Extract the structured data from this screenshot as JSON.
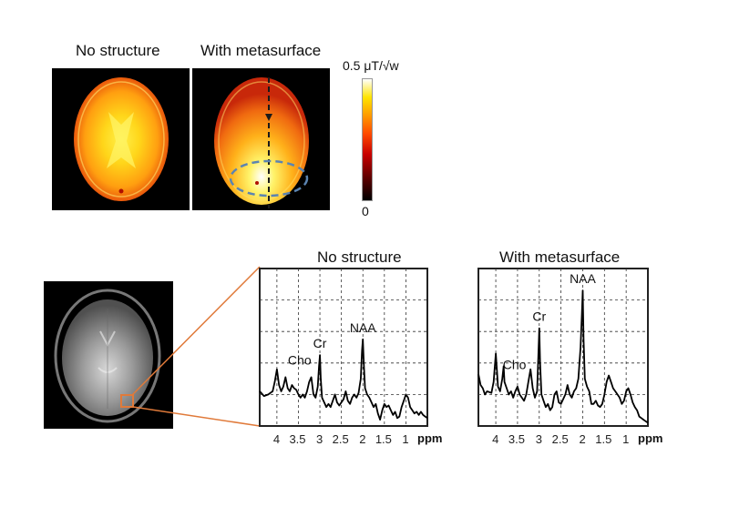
{
  "top_panel": {
    "map_titles": [
      "No structure",
      "With metasurface"
    ],
    "colorbar": {
      "max_label": "0.5 μT/√w",
      "min_label": "0",
      "colormap": "hot",
      "stops": [
        "#000000",
        "#5a0000",
        "#c80000",
        "#ff4a00",
        "#ff9a00",
        "#ffe400",
        "#ffffff"
      ]
    },
    "annotations": {
      "dashed_line_color": "#1a1a1a",
      "ellipse_color": "#5b84b1"
    }
  },
  "bottom_panel": {
    "roi_box_color": "#e07a3a",
    "connector_color": "#e07a3a",
    "chart_data": [
      {
        "type": "line",
        "title": "No structure",
        "xlabel": "ppm",
        "x_ticks": [
          "4",
          "3.5",
          "3",
          "2.5",
          "2",
          "1.5",
          "1"
        ],
        "x_range": [
          4.4,
          0.5
        ],
        "y_range": [
          0,
          1
        ],
        "grid": true,
        "peak_labels": [
          {
            "text": "Cho",
            "ppm": 3.2
          },
          {
            "text": "Cr",
            "ppm": 3.0
          },
          {
            "text": "NAA",
            "ppm": 2.0
          }
        ],
        "series": [
          {
            "name": "spectrum",
            "x": [
              4.4,
              4.3,
              4.2,
              4.1,
              4.05,
              4.0,
              3.95,
              3.9,
              3.85,
              3.8,
              3.75,
              3.7,
              3.65,
              3.6,
              3.55,
              3.5,
              3.45,
              3.4,
              3.35,
              3.3,
              3.25,
              3.2,
              3.15,
              3.1,
              3.05,
              3.02,
              3.0,
              2.98,
              2.95,
              2.9,
              2.85,
              2.8,
              2.75,
              2.7,
              2.65,
              2.6,
              2.55,
              2.5,
              2.45,
              2.4,
              2.35,
              2.3,
              2.25,
              2.2,
              2.15,
              2.1,
              2.05,
              2.02,
              2.0,
              1.98,
              1.95,
              1.9,
              1.85,
              1.8,
              1.75,
              1.7,
              1.65,
              1.6,
              1.55,
              1.5,
              1.45,
              1.4,
              1.35,
              1.3,
              1.25,
              1.2,
              1.15,
              1.1,
              1.05,
              1.0,
              0.95,
              0.9,
              0.85,
              0.8,
              0.75,
              0.7,
              0.65,
              0.6,
              0.55,
              0.5
            ],
            "y": [
              0.22,
              0.19,
              0.2,
              0.22,
              0.28,
              0.36,
              0.26,
              0.22,
              0.25,
              0.31,
              0.24,
              0.22,
              0.26,
              0.24,
              0.23,
              0.2,
              0.18,
              0.2,
              0.18,
              0.22,
              0.28,
              0.31,
              0.2,
              0.18,
              0.25,
              0.38,
              0.45,
              0.3,
              0.18,
              0.15,
              0.12,
              0.14,
              0.12,
              0.16,
              0.2,
              0.15,
              0.13,
              0.15,
              0.17,
              0.22,
              0.16,
              0.14,
              0.18,
              0.2,
              0.18,
              0.21,
              0.3,
              0.48,
              0.55,
              0.4,
              0.24,
              0.2,
              0.18,
              0.15,
              0.12,
              0.14,
              0.08,
              0.04,
              0.1,
              0.14,
              0.12,
              0.13,
              0.1,
              0.07,
              0.09,
              0.05,
              0.06,
              0.12,
              0.16,
              0.2,
              0.18,
              0.12,
              0.1,
              0.08,
              0.09,
              0.07,
              0.09,
              0.07,
              0.06,
              0.05
            ]
          }
        ]
      },
      {
        "type": "line",
        "title": "With metasurface",
        "xlabel": "ppm",
        "x_ticks": [
          "4",
          "3.5",
          "3",
          "2.5",
          "2",
          "1.5",
          "1"
        ],
        "x_range": [
          4.4,
          0.5
        ],
        "y_range": [
          0,
          1
        ],
        "grid": true,
        "peak_labels": [
          {
            "text": "Cho",
            "ppm": 3.3
          },
          {
            "text": "Cr",
            "ppm": 3.0
          },
          {
            "text": "NAA",
            "ppm": 2.0
          }
        ],
        "series": [
          {
            "name": "spectrum",
            "x": [
              4.4,
              4.35,
              4.3,
              4.25,
              4.2,
              4.1,
              4.05,
              4.0,
              3.95,
              3.9,
              3.85,
              3.82,
              3.8,
              3.75,
              3.7,
              3.65,
              3.6,
              3.55,
              3.5,
              3.45,
              3.4,
              3.35,
              3.3,
              3.25,
              3.2,
              3.15,
              3.1,
              3.05,
              3.02,
              3.0,
              2.98,
              2.95,
              2.9,
              2.85,
              2.8,
              2.75,
              2.7,
              2.65,
              2.6,
              2.55,
              2.5,
              2.45,
              2.4,
              2.35,
              2.3,
              2.25,
              2.2,
              2.15,
              2.1,
              2.05,
              2.02,
              2.0,
              1.98,
              1.95,
              1.9,
              1.85,
              1.8,
              1.75,
              1.7,
              1.65,
              1.6,
              1.55,
              1.5,
              1.45,
              1.4,
              1.35,
              1.3,
              1.25,
              1.2,
              1.15,
              1.1,
              1.05,
              1.0,
              0.95,
              0.9,
              0.85,
              0.8,
              0.75,
              0.7,
              0.65,
              0.6,
              0.55,
              0.5
            ],
            "y": [
              0.33,
              0.26,
              0.24,
              0.2,
              0.22,
              0.21,
              0.28,
              0.46,
              0.25,
              0.22,
              0.3,
              0.38,
              0.28,
              0.24,
              0.2,
              0.22,
              0.18,
              0.22,
              0.25,
              0.2,
              0.18,
              0.16,
              0.2,
              0.28,
              0.36,
              0.24,
              0.18,
              0.22,
              0.45,
              0.62,
              0.4,
              0.2,
              0.16,
              0.12,
              0.14,
              0.1,
              0.12,
              0.2,
              0.22,
              0.15,
              0.14,
              0.17,
              0.2,
              0.26,
              0.2,
              0.18,
              0.22,
              0.24,
              0.3,
              0.5,
              0.7,
              0.86,
              0.55,
              0.3,
              0.25,
              0.22,
              0.14,
              0.14,
              0.16,
              0.13,
              0.12,
              0.14,
              0.2,
              0.28,
              0.32,
              0.28,
              0.24,
              0.22,
              0.2,
              0.18,
              0.14,
              0.16,
              0.22,
              0.24,
              0.2,
              0.15,
              0.12,
              0.1,
              0.06,
              0.05,
              0.04,
              0.03,
              0.02
            ]
          }
        ]
      }
    ]
  }
}
